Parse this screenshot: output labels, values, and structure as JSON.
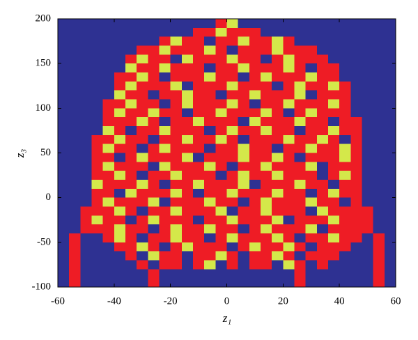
{
  "chart_data": {
    "type": "heatmap",
    "x_label": "z₁",
    "y_label": "z₃",
    "xlim": [
      -60,
      60
    ],
    "ylim": [
      -100,
      200
    ],
    "xticks": [
      -60,
      -40,
      -20,
      0,
      20,
      40,
      60
    ],
    "yticks": [
      -100,
      -50,
      0,
      50,
      100,
      150,
      200
    ],
    "colors": [
      "#2e3192",
      "#ee1c25",
      "#d4e84a"
    ],
    "cells": [
      [
        0,
        0,
        0,
        0,
        0,
        0,
        0,
        0,
        0,
        0,
        0,
        0,
        0,
        0,
        1,
        2,
        0,
        0,
        0,
        0,
        0,
        0,
        0,
        0,
        0,
        0,
        0,
        0,
        0,
        0
      ],
      [
        0,
        0,
        0,
        0,
        0,
        0,
        0,
        0,
        0,
        0,
        0,
        0,
        1,
        1,
        2,
        1,
        1,
        1,
        0,
        0,
        0,
        0,
        0,
        0,
        0,
        0,
        0,
        0,
        0,
        0
      ],
      [
        0,
        0,
        0,
        0,
        0,
        0,
        0,
        0,
        0,
        1,
        2,
        1,
        1,
        0,
        1,
        1,
        2,
        1,
        1,
        2,
        1,
        0,
        0,
        0,
        0,
        0,
        0,
        0,
        0,
        0
      ],
      [
        0,
        0,
        0,
        0,
        0,
        0,
        0,
        1,
        1,
        2,
        1,
        1,
        1,
        2,
        1,
        0,
        1,
        1,
        1,
        2,
        1,
        1,
        1,
        0,
        0,
        0,
        0,
        0,
        0,
        0
      ],
      [
        0,
        0,
        0,
        0,
        0,
        0,
        1,
        2,
        1,
        1,
        0,
        2,
        1,
        1,
        1,
        2,
        1,
        1,
        0,
        1,
        2,
        1,
        1,
        1,
        0,
        0,
        0,
        0,
        0,
        0
      ],
      [
        0,
        0,
        0,
        0,
        0,
        0,
        2,
        1,
        1,
        2,
        1,
        1,
        1,
        0,
        1,
        1,
        2,
        1,
        1,
        1,
        2,
        1,
        0,
        1,
        1,
        0,
        0,
        0,
        0,
        0
      ],
      [
        0,
        0,
        0,
        0,
        0,
        1,
        1,
        2,
        1,
        0,
        1,
        1,
        1,
        2,
        1,
        1,
        0,
        1,
        2,
        1,
        1,
        1,
        2,
        1,
        1,
        0,
        0,
        0,
        0,
        0
      ],
      [
        0,
        0,
        0,
        0,
        0,
        1,
        2,
        1,
        1,
        1,
        2,
        0,
        1,
        1,
        1,
        2,
        1,
        1,
        1,
        0,
        1,
        2,
        1,
        1,
        2,
        1,
        0,
        0,
        0,
        0
      ],
      [
        0,
        0,
        0,
        0,
        0,
        2,
        1,
        1,
        0,
        1,
        1,
        2,
        1,
        1,
        0,
        1,
        1,
        2,
        1,
        1,
        1,
        2,
        0,
        1,
        1,
        1,
        0,
        0,
        0,
        0
      ],
      [
        0,
        0,
        0,
        0,
        1,
        1,
        2,
        1,
        1,
        0,
        1,
        2,
        1,
        1,
        1,
        2,
        1,
        0,
        1,
        1,
        2,
        1,
        1,
        1,
        2,
        1,
        0,
        0,
        0,
        0
      ],
      [
        0,
        0,
        0,
        0,
        1,
        2,
        1,
        1,
        2,
        1,
        1,
        0,
        1,
        1,
        2,
        1,
        1,
        1,
        2,
        1,
        0,
        1,
        2,
        1,
        1,
        1,
        0,
        0,
        0,
        0
      ],
      [
        0,
        0,
        0,
        0,
        1,
        1,
        1,
        2,
        1,
        0,
        1,
        1,
        2,
        1,
        1,
        1,
        0,
        2,
        1,
        1,
        1,
        2,
        1,
        1,
        0,
        1,
        1,
        0,
        0,
        0
      ],
      [
        0,
        0,
        0,
        0,
        2,
        1,
        0,
        1,
        1,
        2,
        1,
        1,
        1,
        0,
        1,
        2,
        1,
        1,
        2,
        1,
        1,
        0,
        1,
        1,
        2,
        1,
        1,
        0,
        0,
        0
      ],
      [
        0,
        0,
        0,
        1,
        1,
        2,
        1,
        1,
        0,
        1,
        1,
        2,
        1,
        1,
        2,
        1,
        0,
        1,
        1,
        1,
        2,
        1,
        1,
        2,
        1,
        0,
        1,
        0,
        0,
        0
      ],
      [
        0,
        0,
        0,
        1,
        2,
        1,
        1,
        0,
        1,
        2,
        1,
        1,
        1,
        0,
        1,
        1,
        2,
        1,
        1,
        0,
        1,
        1,
        2,
        1,
        1,
        2,
        1,
        0,
        0,
        0
      ],
      [
        0,
        0,
        0,
        1,
        1,
        0,
        1,
        2,
        1,
        1,
        1,
        2,
        0,
        1,
        1,
        1,
        2,
        1,
        1,
        2,
        1,
        0,
        1,
        1,
        1,
        2,
        1,
        0,
        0,
        0
      ],
      [
        0,
        0,
        0,
        1,
        2,
        1,
        1,
        1,
        0,
        2,
        1,
        1,
        1,
        2,
        1,
        0,
        1,
        1,
        2,
        1,
        1,
        1,
        2,
        0,
        1,
        1,
        1,
        0,
        0,
        0
      ],
      [
        0,
        0,
        0,
        1,
        1,
        2,
        1,
        0,
        1,
        1,
        2,
        1,
        1,
        1,
        0,
        1,
        2,
        1,
        1,
        2,
        1,
        1,
        1,
        0,
        1,
        2,
        1,
        0,
        0,
        0
      ],
      [
        0,
        0,
        0,
        2,
        1,
        1,
        1,
        2,
        1,
        0,
        1,
        1,
        2,
        1,
        1,
        1,
        2,
        0,
        1,
        1,
        1,
        2,
        1,
        1,
        0,
        1,
        1,
        0,
        0,
        0
      ],
      [
        0,
        0,
        0,
        1,
        1,
        0,
        2,
        1,
        1,
        1,
        2,
        1,
        0,
        1,
        1,
        2,
        1,
        1,
        1,
        2,
        1,
        1,
        0,
        1,
        2,
        1,
        1,
        0,
        0,
        0
      ],
      [
        0,
        0,
        0,
        1,
        2,
        1,
        1,
        1,
        2,
        0,
        1,
        1,
        1,
        2,
        1,
        1,
        0,
        1,
        2,
        1,
        1,
        1,
        2,
        1,
        1,
        0,
        1,
        0,
        0,
        0
      ],
      [
        0,
        0,
        1,
        1,
        1,
        2,
        1,
        0,
        1,
        1,
        2,
        1,
        1,
        1,
        2,
        0,
        1,
        1,
        2,
        1,
        1,
        1,
        0,
        2,
        1,
        1,
        1,
        1,
        0,
        0
      ],
      [
        0,
        0,
        1,
        2,
        1,
        1,
        0,
        1,
        2,
        1,
        1,
        1,
        0,
        1,
        1,
        2,
        1,
        1,
        1,
        2,
        0,
        1,
        1,
        1,
        2,
        1,
        1,
        1,
        0,
        0
      ],
      [
        0,
        0,
        1,
        1,
        1,
        2,
        1,
        1,
        0,
        1,
        2,
        1,
        1,
        2,
        1,
        1,
        0,
        1,
        2,
        1,
        1,
        1,
        2,
        0,
        1,
        1,
        1,
        1,
        0,
        0
      ],
      [
        0,
        1,
        0,
        0,
        1,
        2,
        1,
        0,
        1,
        1,
        2,
        1,
        1,
        0,
        1,
        2,
        1,
        1,
        1,
        2,
        1,
        0,
        1,
        1,
        2,
        1,
        1,
        0,
        1,
        0
      ],
      [
        0,
        1,
        0,
        0,
        0,
        1,
        1,
        2,
        1,
        0,
        1,
        2,
        1,
        1,
        1,
        0,
        1,
        2,
        1,
        1,
        2,
        1,
        0,
        1,
        1,
        1,
        0,
        0,
        1,
        0
      ],
      [
        0,
        1,
        0,
        0,
        0,
        0,
        1,
        0,
        2,
        1,
        1,
        0,
        1,
        1,
        2,
        1,
        0,
        1,
        1,
        2,
        1,
        0,
        1,
        1,
        1,
        0,
        0,
        0,
        1,
        0
      ],
      [
        0,
        1,
        0,
        0,
        0,
        0,
        0,
        1,
        0,
        1,
        1,
        0,
        1,
        2,
        0,
        1,
        0,
        1,
        1,
        0,
        2,
        1,
        0,
        1,
        0,
        0,
        0,
        0,
        1,
        0
      ],
      [
        0,
        1,
        0,
        0,
        0,
        0,
        0,
        0,
        1,
        0,
        0,
        0,
        0,
        0,
        0,
        0,
        0,
        0,
        0,
        0,
        0,
        1,
        0,
        0,
        0,
        0,
        0,
        0,
        1,
        0
      ],
      [
        0,
        1,
        0,
        0,
        0,
        0,
        0,
        0,
        1,
        0,
        0,
        0,
        0,
        0,
        0,
        0,
        0,
        0,
        0,
        0,
        0,
        1,
        0,
        0,
        0,
        0,
        0,
        0,
        1,
        0
      ]
    ]
  }
}
